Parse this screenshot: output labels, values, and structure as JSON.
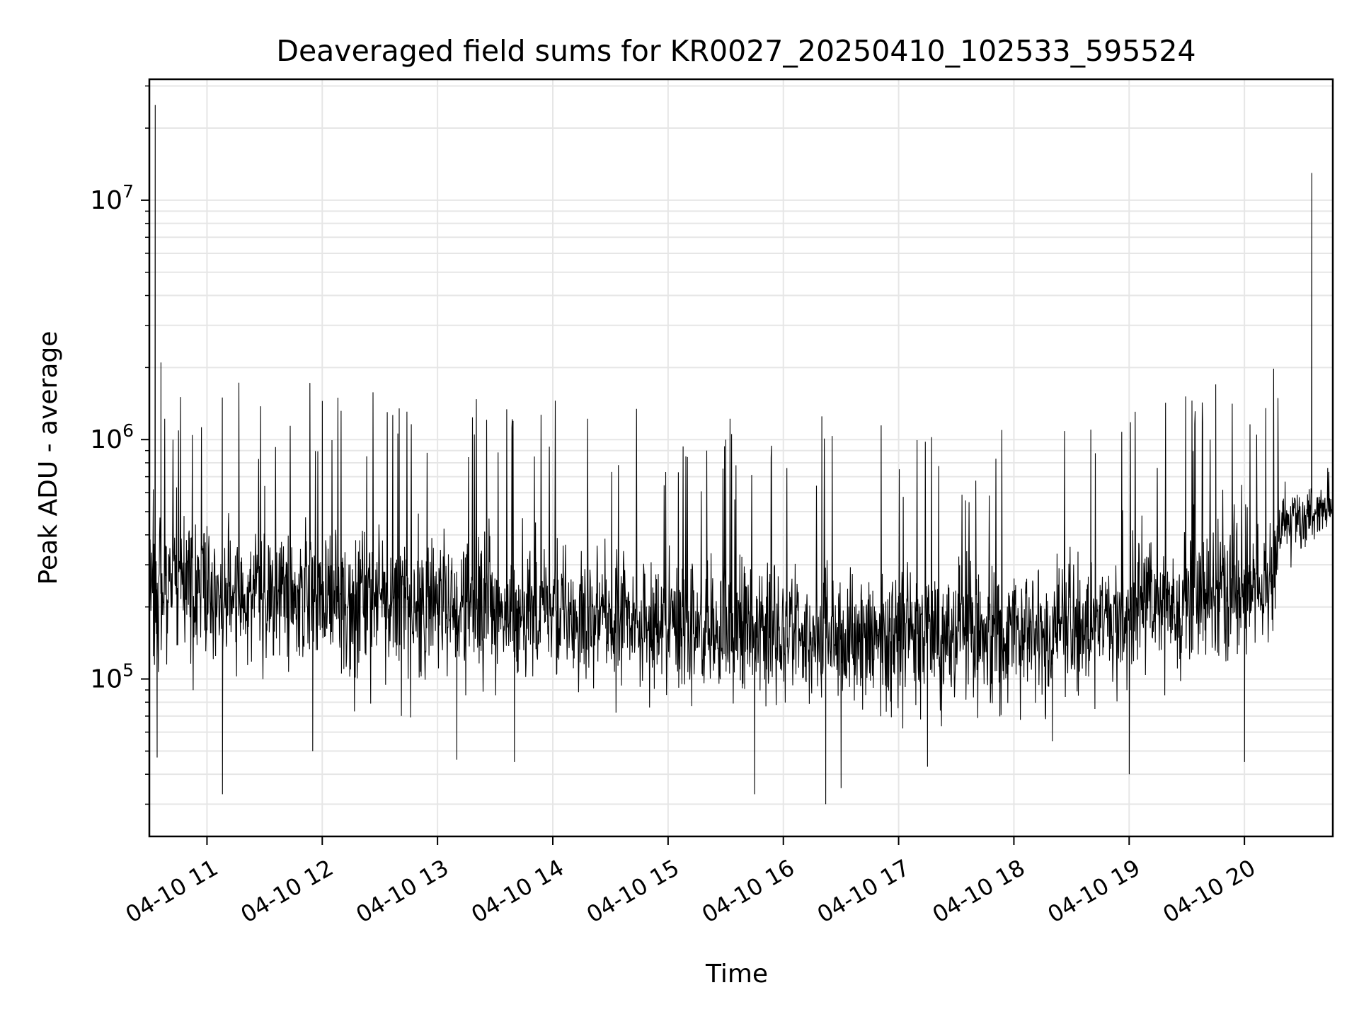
{
  "chart_data": {
    "type": "line",
    "title": "Deaveraged field sums for KR0027_20250410_102533_595524",
    "xlabel": "Time",
    "ylabel": "Peak ADU - average",
    "x_scale": "time",
    "y_scale": "log",
    "xlim": [
      "2025-04-10 10:30",
      "2025-04-10 20:46"
    ],
    "ylim": [
      22000,
      32000000
    ],
    "x_tick_labels": [
      "04-10 11",
      "04-10 12",
      "04-10 13",
      "04-10 14",
      "04-10 15",
      "04-10 16",
      "04-10 17",
      "04-10 18",
      "04-10 19",
      "04-10 20"
    ],
    "y_tick_labels": [
      {
        "base": "10",
        "exp": "5",
        "value": 100000
      },
      {
        "base": "10",
        "exp": "6",
        "value": 1000000
      },
      {
        "base": "10",
        "exp": "7",
        "value": 10000000
      }
    ],
    "grid": true,
    "legend": "none",
    "line_color": "#000000",
    "grid_color": "#e6e6e6",
    "series": [
      {
        "points": [
          [
            "2025-04-10 10:30",
            300000
          ],
          [
            "2025-04-10 10:32",
            620000
          ],
          [
            "2025-04-10 10:33",
            25000000
          ],
          [
            "2025-04-10 10:34",
            47000
          ],
          [
            "2025-04-10 10:36",
            2100000
          ],
          [
            "2025-04-10 10:48",
            480000
          ],
          [
            "2025-04-10 11:00",
            160000
          ],
          [
            "2025-04-10 11:08",
            33000
          ],
          [
            "2025-04-10 11:15",
            200000
          ],
          [
            "2025-04-10 11:30",
            640000
          ],
          [
            "2025-04-10 11:45",
            230000
          ],
          [
            "2025-04-10 11:55",
            50000
          ],
          [
            "2025-04-10 12:00",
            1450000
          ],
          [
            "2025-04-10 12:20",
            250000
          ],
          [
            "2025-04-10 12:40",
            1350000
          ],
          [
            "2025-04-10 12:50",
            220000
          ],
          [
            "2025-04-10 13:10",
            46000
          ],
          [
            "2025-04-10 13:40",
            45000
          ],
          [
            "2025-04-10 14:00",
            200000
          ],
          [
            "2025-04-10 14:30",
            180000
          ],
          [
            "2025-04-10 15:00",
            150000
          ],
          [
            "2025-04-10 15:30",
            1000000
          ],
          [
            "2025-04-10 15:45",
            33000
          ],
          [
            "2025-04-10 16:00",
            160000
          ],
          [
            "2025-04-10 16:20",
            1250000
          ],
          [
            "2025-04-10 16:22",
            30000
          ],
          [
            "2025-04-10 16:30",
            35000
          ],
          [
            "2025-04-10 17:00",
            150000
          ],
          [
            "2025-04-10 17:15",
            43000
          ],
          [
            "2025-04-10 17:30",
            160000
          ],
          [
            "2025-04-10 18:00",
            150000
          ],
          [
            "2025-04-10 18:20",
            55000
          ],
          [
            "2025-04-10 18:40",
            1100000
          ],
          [
            "2025-04-10 19:00",
            40000
          ],
          [
            "2025-04-10 19:30",
            220000
          ],
          [
            "2025-04-10 19:45",
            1700000
          ],
          [
            "2025-04-10 20:00",
            45000
          ],
          [
            "2025-04-10 20:15",
            500000
          ],
          [
            "2025-04-10 20:35",
            13000000
          ],
          [
            "2025-04-10 20:45",
            550000
          ]
        ]
      }
    ]
  }
}
